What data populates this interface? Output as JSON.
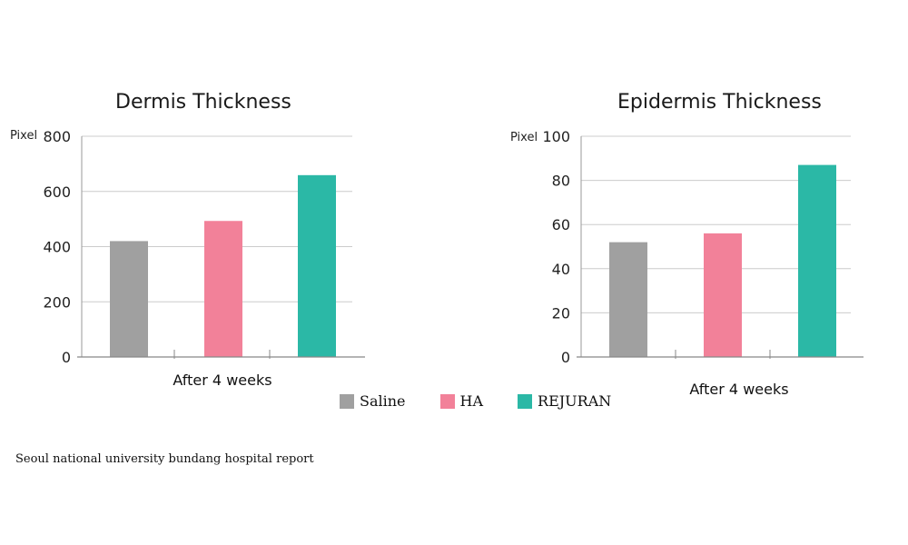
{
  "chart_data": [
    {
      "type": "bar",
      "title": "Dermis Thickness",
      "ylabel": "Pixel",
      "xlabel": "After 4 weeks",
      "ylim": [
        0,
        800
      ],
      "yticks": [
        0,
        200,
        400,
        600,
        800
      ],
      "grid": true,
      "categories": [
        "Saline",
        "HA",
        "REJURAN"
      ],
      "values": [
        420,
        493,
        659
      ]
    },
    {
      "type": "bar",
      "title": "Epidermis Thickness",
      "ylabel": "Pixel",
      "xlabel": "After 4 weeks",
      "ylim": [
        0,
        100
      ],
      "yticks": [
        0,
        20,
        40,
        60,
        80,
        100
      ],
      "grid": true,
      "categories": [
        "Saline",
        "HA",
        "REJURAN"
      ],
      "values": [
        52,
        56,
        87
      ]
    }
  ],
  "legend": {
    "placement": "bottom-center",
    "items": [
      {
        "label": "Saline",
        "color": "#a0a0a0"
      },
      {
        "label": "HA",
        "color": "#f28199"
      },
      {
        "label": "REJURAN",
        "color": "#2bb8a6"
      }
    ]
  },
  "source_note": "Seoul national university bundang hospital report"
}
